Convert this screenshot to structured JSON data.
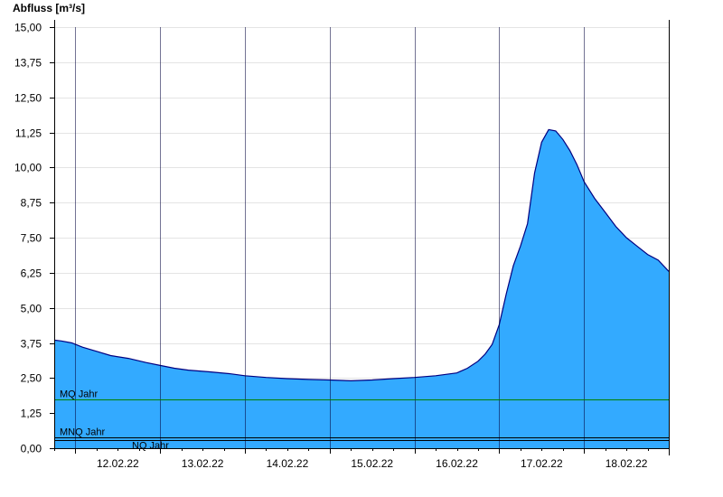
{
  "chart_data": {
    "type": "area",
    "title": "",
    "ylabel": "Abfluss [m³/s]",
    "xlabel": "",
    "ylim": [
      0,
      15
    ],
    "x_range_days": [
      "11.02.22 18:00",
      "18.02.22 24:00"
    ],
    "yticks": [
      "0,00",
      "1,25",
      "2,50",
      "3,75",
      "5,00",
      "6,25",
      "7,50",
      "8,75",
      "10,00",
      "11,25",
      "12,50",
      "13,75",
      "15,00"
    ],
    "ytick_values": [
      0,
      1.25,
      2.5,
      3.75,
      5,
      6.25,
      7.5,
      8.75,
      10,
      11.25,
      12.5,
      13.75,
      15
    ],
    "xticks": [
      "12.02.22",
      "13.02.22",
      "14.02.22",
      "15.02.22",
      "16.02.22",
      "17.02.22",
      "18.02.22"
    ],
    "grid": true,
    "fill_color": "#33aaff",
    "line_color": "#000080",
    "series": [
      {
        "x": [
          "11.02.22 18:00",
          "11.02.22 20:00",
          "11.02.22 23:00",
          "12.02.22 02:00",
          "12.02.22 06:00",
          "12.02.22 10:00",
          "12.02.22 15:00",
          "12.02.22 20:00",
          "12.02.22 24:00",
          "13.02.22 04:00",
          "13.02.22 08:00",
          "13.02.22 14:00",
          "13.02.22 20:00",
          "14.02.22 00:00",
          "14.02.22 06:00",
          "14.02.22 12:00",
          "14.02.22 18:00",
          "15.02.22 00:00",
          "15.02.22 06:00",
          "15.02.22 12:00",
          "15.02.22 18:00",
          "16.02.22 00:00",
          "16.02.22 06:00",
          "16.02.22 12:00",
          "16.02.22 15:00",
          "16.02.22 18:00",
          "16.02.22 20:00",
          "16.02.22 22:00",
          "17.02.22 00:00",
          "17.02.22 02:00",
          "17.02.22 04:00",
          "17.02.22 06:00",
          "17.02.22 08:00",
          "17.02.22 10:00",
          "17.02.22 12:00",
          "17.02.22 14:00",
          "17.02.22 16:00",
          "17.02.22 18:00",
          "17.02.22 20:00",
          "17.02.22 22:00",
          "18.02.22 00:00",
          "18.02.22 03:00",
          "18.02.22 06:00",
          "18.02.22 09:00",
          "18.02.22 12:00",
          "18.02.22 15:00",
          "18.02.22 18:00",
          "18.02.22 21:00",
          "18.02.22 24:00"
        ],
        "values": [
          3.85,
          3.82,
          3.75,
          3.6,
          3.45,
          3.3,
          3.2,
          3.05,
          2.95,
          2.85,
          2.78,
          2.72,
          2.65,
          2.58,
          2.52,
          2.48,
          2.45,
          2.43,
          2.4,
          2.43,
          2.48,
          2.52,
          2.58,
          2.68,
          2.85,
          3.1,
          3.35,
          3.7,
          4.4,
          5.5,
          6.5,
          7.2,
          8.0,
          9.8,
          10.9,
          11.35,
          11.3,
          11.0,
          10.6,
          10.1,
          9.5,
          8.9,
          8.4,
          7.9,
          7.5,
          7.2,
          6.9,
          6.7,
          6.3
        ]
      }
    ],
    "reference_lines": [
      {
        "name": "MQ Jahr",
        "value": 1.75,
        "color": "#008000"
      },
      {
        "name": "MNQ Jahr",
        "value": 0.4,
        "color": "#000000"
      },
      {
        "name": "NQ Jahr",
        "value": 0.28,
        "color": "#000000"
      }
    ]
  }
}
